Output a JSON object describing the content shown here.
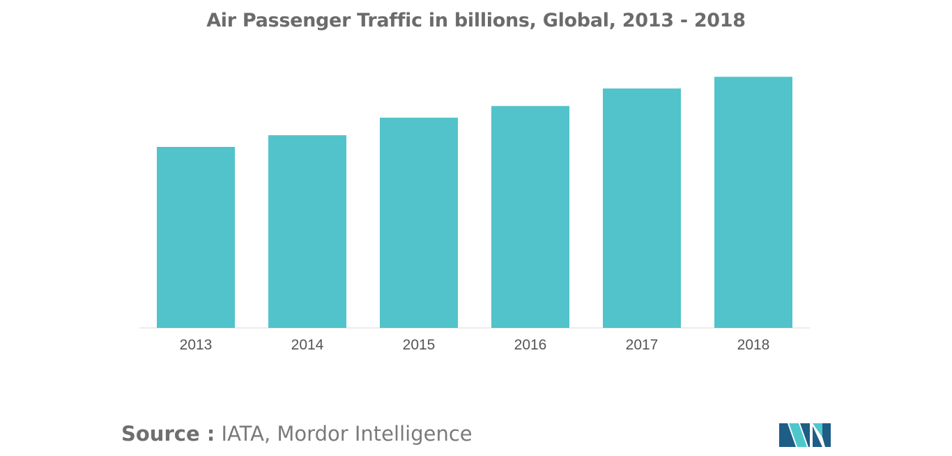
{
  "chart_data": {
    "type": "bar",
    "title": "Air Passenger Traffic in billions, Global, 2013 - 2018",
    "xlabel": "",
    "ylabel": "",
    "categories": [
      "2013",
      "2014",
      "2015",
      "2016",
      "2017",
      "2018"
    ],
    "values": [
      3.1,
      3.3,
      3.6,
      3.8,
      4.1,
      4.3
    ],
    "ylim": [
      0,
      4.9
    ],
    "grid": false,
    "legend": "none",
    "bar_color": "#52c3ca"
  },
  "source": {
    "prefix": "Source :",
    "text": "IATA, Mordor Intelligence"
  },
  "colors": {
    "title": "#6b6b6b",
    "axis": "#d9d9d9",
    "logo_dark": "#1e5d86",
    "logo_light": "#4ec7cc"
  }
}
